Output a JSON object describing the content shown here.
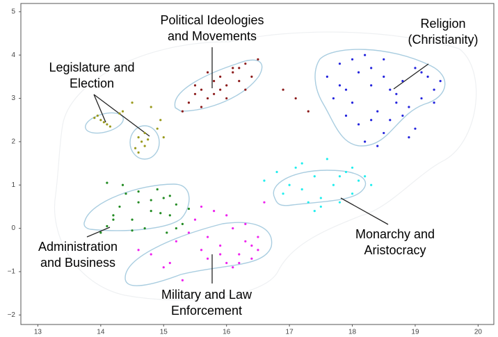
{
  "chart_data": {
    "type": "scatter",
    "xlim": [
      12.73,
      20.25
    ],
    "ylim": [
      -2.22,
      5.19
    ],
    "xticks": [
      13,
      14,
      15,
      16,
      17,
      18,
      19,
      20
    ],
    "yticks": [
      {
        "value": -2,
        "label": "−2"
      },
      {
        "value": -1,
        "label": "−1"
      },
      0,
      1,
      2,
      3,
      4,
      5
    ],
    "grid": false,
    "annotations": [
      [
        "Political Ideologies",
        "and Movements"
      ],
      [
        "Religion",
        "(Christianity)"
      ],
      [
        "Legislature and",
        "Election"
      ],
      [
        "Administration",
        "and Business"
      ],
      [
        "Monarchy and",
        "Aristocracy"
      ],
      [
        "Military and Law",
        "Enforcement"
      ]
    ],
    "series": [
      {
        "color": "#8b1a1a",
        "x": [
          15.3,
          15.4,
          15.5,
          15.6,
          15.7,
          15.8,
          15.9,
          16.0,
          16.1,
          16.2,
          16.3,
          16.4,
          16.5,
          15.6,
          15.8,
          16.0,
          16.2,
          15.5,
          15.9,
          16.1,
          16.9,
          17.1,
          17.3,
          15.7,
          16.3
        ],
        "values": [
          2.7,
          2.9,
          3.1,
          3.2,
          3.0,
          3.4,
          3.5,
          3.3,
          3.6,
          3.7,
          3.8,
          3.5,
          3.9,
          2.8,
          3.1,
          3.0,
          3.4,
          3.3,
          3.2,
          3.7,
          3.2,
          3.0,
          2.7,
          3.6,
          3.2
        ]
      },
      {
        "color": "#2323dd",
        "x": [
          17.6,
          17.8,
          17.9,
          18.0,
          18.1,
          18.2,
          18.3,
          18.4,
          18.5,
          18.6,
          18.7,
          18.8,
          18.9,
          19.0,
          19.1,
          19.2,
          19.3,
          19.4,
          17.7,
          17.9,
          18.1,
          18.3,
          18.5,
          18.7,
          18.9,
          19.1,
          19.3,
          18.2,
          18.4,
          18.6,
          18.0,
          18.8,
          19.0,
          17.8,
          18.5,
          18.3
        ],
        "values": [
          3.5,
          3.8,
          3.2,
          2.9,
          3.6,
          4.0,
          3.3,
          2.7,
          3.9,
          2.5,
          3.1,
          3.4,
          2.8,
          3.7,
          3.0,
          3.5,
          3.2,
          3.4,
          3.0,
          2.6,
          2.4,
          3.7,
          2.2,
          2.9,
          2.1,
          3.6,
          2.9,
          2.0,
          1.9,
          3.2,
          3.9,
          2.6,
          2.3,
          3.3,
          3.5,
          2.5
        ]
      },
      {
        "color": "#9a9a1e",
        "x": [
          13.9,
          14.0,
          14.05,
          14.1,
          14.15,
          13.95,
          14.3,
          14.35,
          14.5,
          14.6,
          14.65,
          14.7,
          14.55,
          14.6,
          14.75,
          14.7,
          14.9,
          15.0,
          14.8,
          14.95
        ],
        "values": [
          2.55,
          2.5,
          2.45,
          2.4,
          2.35,
          2.6,
          2.65,
          2.7,
          2.9,
          2.1,
          2.0,
          1.9,
          1.85,
          1.75,
          2.05,
          2.2,
          2.3,
          2.1,
          2.8,
          2.5
        ]
      },
      {
        "color": "#228b22",
        "x": [
          14.0,
          14.1,
          14.2,
          14.3,
          14.4,
          14.5,
          14.6,
          14.7,
          14.8,
          14.9,
          15.0,
          15.1,
          15.2,
          15.3,
          15.4,
          14.2,
          14.5,
          14.8,
          15.1,
          15.2,
          14.35,
          14.95,
          15.05,
          14.6,
          14.1
        ],
        "values": [
          -0.1,
          0.05,
          0.3,
          0.5,
          0.8,
          0.2,
          0.6,
          0.0,
          0.4,
          0.9,
          0.7,
          0.3,
          0.55,
          0.1,
          0.45,
          0.2,
          -0.05,
          0.65,
          0.75,
          0.0,
          1.0,
          0.35,
          -0.1,
          0.85,
          1.05
        ]
      },
      {
        "color": "#22eeee",
        "x": [
          16.6,
          16.8,
          17.0,
          17.1,
          17.2,
          17.3,
          17.4,
          17.5,
          17.6,
          17.7,
          17.8,
          17.9,
          18.0,
          18.1,
          18.2,
          18.3,
          17.2,
          17.5,
          17.8,
          18.0,
          16.9,
          17.4
        ],
        "values": [
          1.1,
          1.3,
          1.0,
          1.4,
          0.9,
          0.6,
          1.2,
          0.7,
          1.6,
          1.0,
          0.6,
          1.3,
          0.8,
          1.1,
          1.2,
          1.0,
          1.5,
          0.5,
          1.2,
          1.4,
          0.8,
          0.4
        ]
      },
      {
        "color": "#ee22ee",
        "x": [
          14.6,
          14.8,
          15.0,
          15.2,
          15.4,
          15.5,
          15.6,
          15.7,
          15.8,
          15.9,
          16.0,
          16.1,
          16.2,
          16.3,
          16.4,
          16.5,
          16.6,
          15.3,
          15.7,
          16.0,
          16.2,
          16.4,
          15.1,
          15.9,
          16.3,
          16.5,
          15.6,
          16.1
        ],
        "values": [
          -0.5,
          -0.6,
          -0.9,
          -0.3,
          -0.1,
          0.2,
          -0.5,
          -0.7,
          0.4,
          -0.4,
          -0.8,
          0.0,
          -0.6,
          -0.3,
          -0.7,
          -0.5,
          0.6,
          -1.2,
          -0.2,
          0.3,
          -0.8,
          -0.4,
          -0.8,
          -0.6,
          0.1,
          -0.2,
          0.5,
          -0.9
        ]
      }
    ]
  }
}
